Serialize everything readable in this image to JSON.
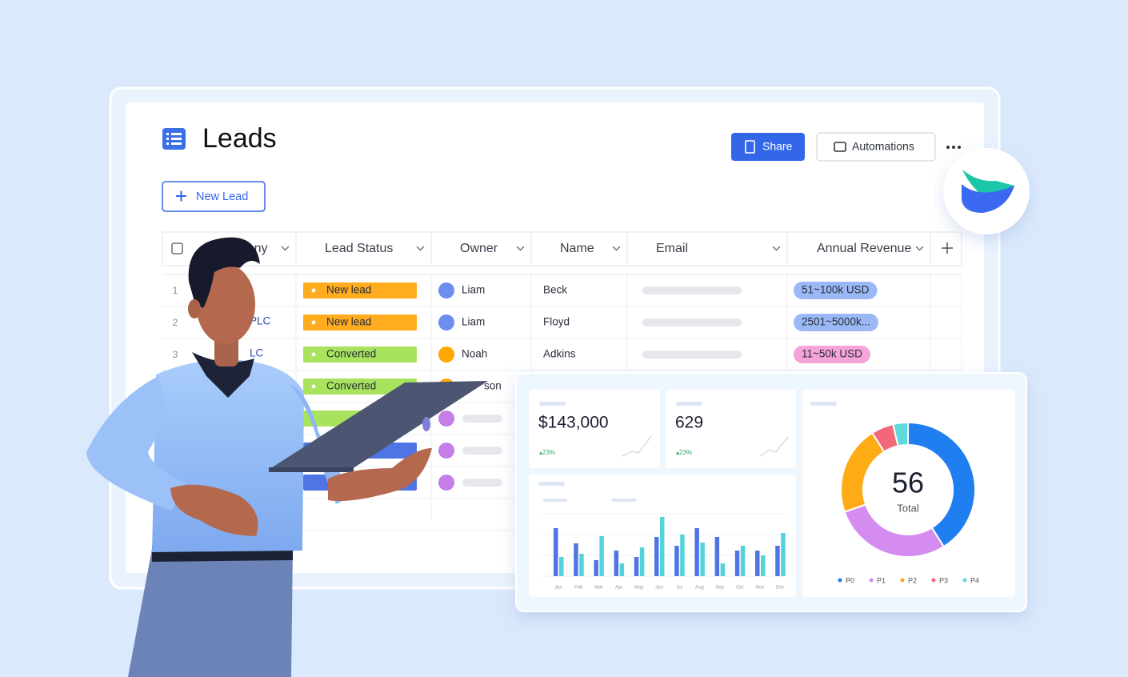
{
  "header": {
    "title": "Leads",
    "share": "Share",
    "automations": "Automations",
    "new_lead": "New Lead"
  },
  "table": {
    "columns": [
      "Company",
      "Lead Status",
      "Owner",
      "Name",
      "Email",
      "Annual Revenue"
    ],
    "rows": [
      {
        "index": "1",
        "status": "New lead",
        "status_color": "#ffad1f",
        "owner": "Liam",
        "owner_color": "#6b8ef0",
        "name": "Beck",
        "revenue": "51~100k USD",
        "revenue_color": "#9ab8f6"
      },
      {
        "index": "2",
        "company": "PLC",
        "status": "New lead",
        "status_color": "#ffad1f",
        "owner": "Liam",
        "owner_color": "#6b8ef0",
        "name": "Floyd",
        "revenue": "2501~5000k...",
        "revenue_color": "#9ab8f6"
      },
      {
        "index": "3",
        "company": "LC",
        "status": "Converted",
        "status_color": "#a8e35e",
        "owner": "Noah",
        "owner_color": "#ffa800",
        "name": "Adkins",
        "revenue": "11~50k USD",
        "revenue_color": "#f6a3da"
      },
      {
        "status": "Converted",
        "status_color": "#a8e35e",
        "owner": "son",
        "owner_color": "#ffa800"
      }
    ]
  },
  "cards": [
    {
      "value": "$143,000",
      "change": "▴23%"
    },
    {
      "value": "629",
      "change": "▴23%"
    }
  ],
  "chart_data": [
    {
      "type": "bar",
      "categories": [
        "Jan",
        "Feb",
        "Mar",
        "Apr",
        "May",
        "Jun",
        "Jul",
        "Aug",
        "Sep",
        "Oct",
        "Nov",
        "Dec"
      ],
      "series": [
        {
          "color": "#4f74e3",
          "values": [
            60,
            41,
            20,
            32,
            24,
            49,
            38,
            60,
            49,
            32,
            32,
            38
          ]
        },
        {
          "color": "#55d3dc",
          "values": [
            24,
            28,
            50,
            16,
            36,
            74,
            52,
            42,
            16,
            38,
            26,
            54
          ]
        }
      ]
    },
    {
      "type": "pie",
      "total": 56,
      "total_label": "Total",
      "categories": [
        "P0",
        "P1",
        "P2",
        "P3",
        "P4"
      ],
      "values": [
        23,
        16,
        12,
        3,
        2
      ],
      "colors": [
        "#1f7ff0",
        "#d58cf0",
        "#ffab16",
        "#f2687a",
        "#5fd9dc"
      ]
    }
  ]
}
